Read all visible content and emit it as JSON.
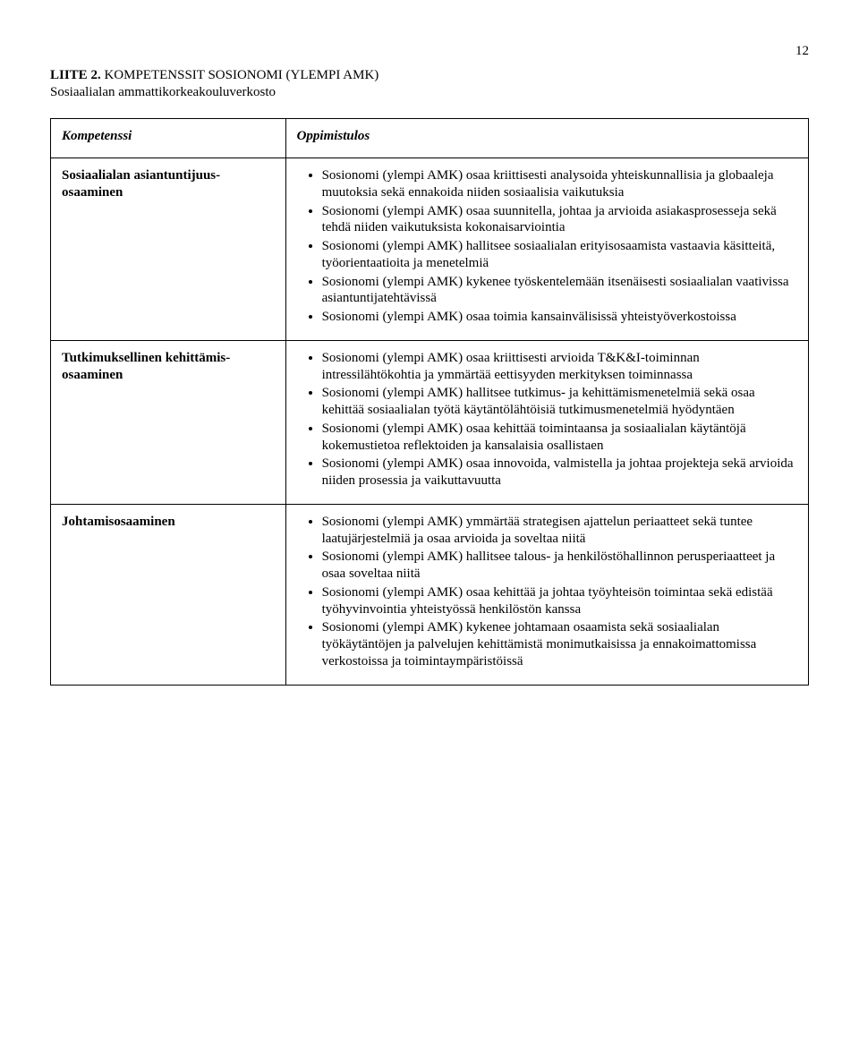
{
  "page_number": "12",
  "heading_line1_bold": "LIITE 2.",
  "heading_line1_rest": " KOMPETENSSIT SOSIONOMI (YLEMPI AMK)",
  "heading_line2": "Sosiaalialan ammattikorkeakouluverkosto",
  "table": {
    "header_left": "Kompetenssi",
    "header_right": "Oppimistulos",
    "rows": [
      {
        "name": "Sosiaalialan asiantuntijuus-osaaminen",
        "items": [
          "Sosionomi (ylempi AMK) osaa kriittisesti analysoida yhteiskunnallisia ja globaaleja muutoksia sekä ennakoida niiden sosiaalisia vaikutuksia",
          "Sosionomi (ylempi AMK) osaa suunnitella, johtaa ja arvioida asiakasprosesseja sekä tehdä niiden vaikutuksista kokonaisarviointia",
          "Sosionomi (ylempi AMK) hallitsee sosiaalialan erityisosaamista vastaavia käsitteitä, työorientaatioita ja menetelmiä",
          "Sosionomi (ylempi AMK) kykenee työskentelemään itsenäisesti sosiaalialan vaativissa asiantuntijatehtävissä",
          "Sosionomi (ylempi AMK) osaa toimia kansainvälisissä yhteistyöverkostoissa"
        ]
      },
      {
        "name": "Tutkimuksellinen kehittämis-osaaminen",
        "items": [
          "Sosionomi (ylempi AMK) osaa kriittisesti arvioida T&K&I-toiminnan intressilähtökohtia ja ymmärtää eettisyyden merkityksen toiminnassa",
          "Sosionomi (ylempi AMK) hallitsee tutkimus- ja kehittämismenetelmiä sekä osaa kehittää sosiaalialan työtä käytäntölähtöisiä tutkimusmenetelmiä hyödyntäen",
          "Sosionomi (ylempi AMK) osaa kehittää toimintaansa ja sosiaalialan käytäntöjä kokemustietoa reflektoiden ja kansalaisia osallistaen",
          "Sosionomi (ylempi AMK) osaa innovoida, valmistella ja johtaa projekteja sekä arvioida niiden prosessia ja vaikuttavuutta"
        ]
      },
      {
        "name": "Johtamisosaaminen",
        "items": [
          "Sosionomi (ylempi AMK) ymmärtää strategisen ajattelun periaatteet sekä tuntee laatujärjestelmiä ja osaa arvioida ja soveltaa niitä",
          "Sosionomi (ylempi AMK) hallitsee talous- ja henkilöstöhallinnon perusperiaatteet ja osaa soveltaa niitä",
          "Sosionomi (ylempi AMK) osaa kehittää ja johtaa työyhteisön toimintaa sekä edistää työhyvinvointia yhteistyössä henkilöstön kanssa",
          "Sosionomi (ylempi AMK) kykenee johtamaan osaamista sekä sosiaalialan työkäytäntöjen ja palvelujen kehittämistä monimutkaisissa ja ennakoimattomissa verkostoissa ja toimintaympäristöissä"
        ]
      }
    ]
  }
}
